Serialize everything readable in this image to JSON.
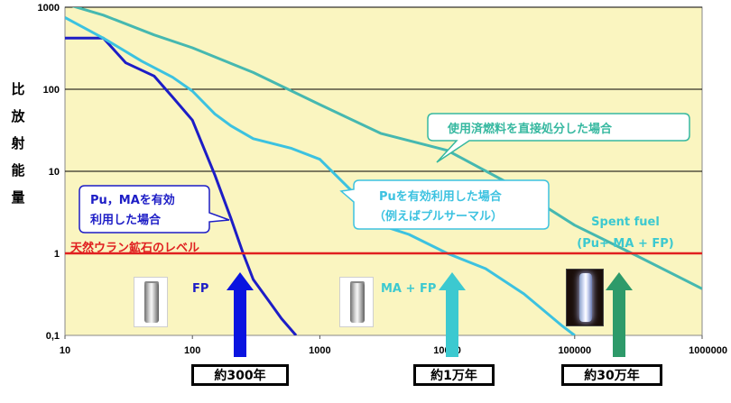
{
  "page": {
    "ylabel_chars": [
      "比",
      "放",
      "射",
      "能",
      "量"
    ],
    "eras": [
      "約300年",
      "約1万年",
      "約30万年"
    ]
  },
  "chart_data": {
    "type": "line",
    "x_scale": "log",
    "y_scale": "log",
    "xlim": [
      10,
      1000000
    ],
    "ylim": [
      0.1,
      1000
    ],
    "x_ticks": [
      10,
      100,
      1000,
      10000,
      100000,
      1000000
    ],
    "x_tick_labels": [
      "10",
      "100",
      "1000",
      "10000",
      "100000",
      "1000000"
    ],
    "y_ticks": [
      0.1,
      1,
      10,
      100,
      1000
    ],
    "y_tick_labels": [
      "0,1",
      "1",
      "10",
      "100",
      "1000"
    ],
    "grid": "horizontal",
    "colors": {
      "background": "#faf5c0",
      "fp": "#1d1dc6",
      "ma_fp": "#3cc2e0",
      "spent": "#46b8b0",
      "ref": "#e02020"
    },
    "series": [
      {
        "color": "#1d1dc6",
        "x": [
          10,
          20,
          30,
          50,
          70,
          100,
          150,
          200,
          250,
          300,
          400,
          500,
          650
        ],
        "y": [
          420,
          420,
          210,
          145,
          80,
          42,
          9,
          2.7,
          1.0,
          0.48,
          0.26,
          0.16,
          0.1
        ]
      },
      {
        "color": "#3cc2e0",
        "x": [
          10,
          20,
          40,
          70,
          100,
          150,
          200,
          300,
          600,
          1000,
          2000,
          3000,
          5000,
          10000,
          20000,
          40000,
          80000,
          100000
        ],
        "y": [
          750,
          420,
          220,
          140,
          95,
          50,
          36,
          25,
          19,
          14,
          4.8,
          2.2,
          1.7,
          1.0,
          0.65,
          0.32,
          0.13,
          0.1
        ]
      },
      {
        "color": "#46b8b0",
        "x": [
          10,
          20,
          50,
          100,
          300,
          1000,
          3000,
          10000,
          30000,
          100000,
          300000,
          1000000
        ],
        "y": [
          1100,
          800,
          460,
          320,
          160,
          65,
          29,
          18,
          7.2,
          2.2,
          0.95,
          0.37
        ]
      }
    ],
    "reference_line": {
      "y": 1,
      "label": "天然ウラン鉱石のレベル"
    },
    "annotations": [
      {
        "text_lines": [
          "使用済燃料を直接処分した場合"
        ]
      },
      {
        "text_lines": [
          "Puを有効利用した場合",
          "（例えばプルサーマル）"
        ]
      },
      {
        "text_lines": [
          "Pu，MAを有効",
          "利用した場合"
        ]
      },
      {
        "text_lines": [
          "Spent fuel",
          "(Pu+ MA + FP)"
        ]
      },
      {
        "text_lines": [
          "FP"
        ]
      },
      {
        "text_lines": [
          "MA + FP"
        ]
      }
    ]
  }
}
